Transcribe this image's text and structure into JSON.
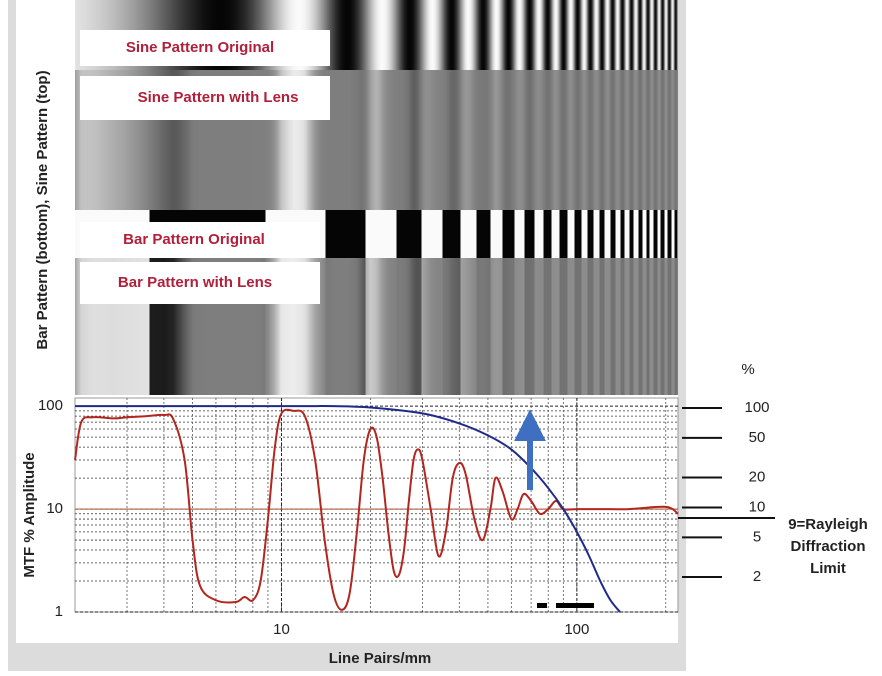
{
  "chart_data": {
    "type": "line",
    "pattern_label": "Bar Pattern (bottom), Sine Pattern (top)",
    "pattern_rows": [
      "Sine Pattern Original",
      "Sine Pattern with Lens",
      "Bar Pattern Original",
      "Bar Pattern with Lens"
    ],
    "y_label": "MTF % Amplitude",
    "x_label": "Line Pairs/mm",
    "log_x": true,
    "log_y": true,
    "grid": true,
    "xlim": [
      2,
      220
    ],
    "xticks": [
      10,
      100
    ],
    "ylim": [
      1,
      120
    ],
    "yticks": [
      1,
      10,
      100
    ],
    "series": [
      {
        "color": "#b3261e",
        "x": [
          2,
          2.1,
          2.3,
          2.7,
          3,
          3.5,
          4,
          4.3,
          4.7,
          5,
          5.3,
          6,
          7,
          7.5,
          8,
          8.5,
          9,
          9.5,
          10,
          11,
          12,
          13,
          14,
          15,
          16,
          17,
          18,
          19,
          20,
          21,
          22,
          23,
          24,
          25,
          26,
          27,
          28,
          29,
          30,
          32,
          34,
          36,
          38,
          40,
          42,
          45,
          48,
          51,
          53,
          56,
          60,
          63,
          66,
          70,
          75,
          80,
          85,
          90,
          100,
          120,
          150,
          200,
          220
        ],
        "values": [
          30,
          70,
          78,
          76,
          78,
          80,
          82,
          75,
          30,
          5,
          1.8,
          1.3,
          1.25,
          1.4,
          1.3,
          2,
          8,
          40,
          85,
          90,
          80,
          30,
          5,
          1.5,
          1.05,
          1.5,
          6,
          30,
          60,
          50,
          20,
          6,
          2.5,
          2.3,
          4,
          12,
          30,
          38,
          30,
          10,
          3.5,
          6,
          20,
          28,
          22,
          8,
          5,
          10,
          20,
          15,
          8,
          10,
          14,
          12,
          9,
          10,
          12,
          10,
          10,
          10,
          10,
          10.5,
          9
        ]
      },
      {
        "color": "#1f2a8a",
        "x": [
          2,
          10,
          15,
          20,
          30,
          40,
          50,
          60,
          70,
          80,
          90,
          100,
          110,
          120,
          130,
          140
        ],
        "values": [
          100,
          100,
          100,
          97,
          85,
          68,
          52,
          38,
          25,
          16,
          10,
          6,
          3.5,
          2,
          1.3,
          1
        ]
      }
    ],
    "reference_line": {
      "value": 10,
      "color": "#b5654a"
    },
    "y2_unit": "%",
    "y2lim": [
      0.89,
      126
    ],
    "y2ticks": [
      100,
      50,
      20,
      10,
      5,
      2
    ],
    "annotation": [
      "9=Rayleigh",
      "Diffraction",
      "Limit"
    ]
  }
}
